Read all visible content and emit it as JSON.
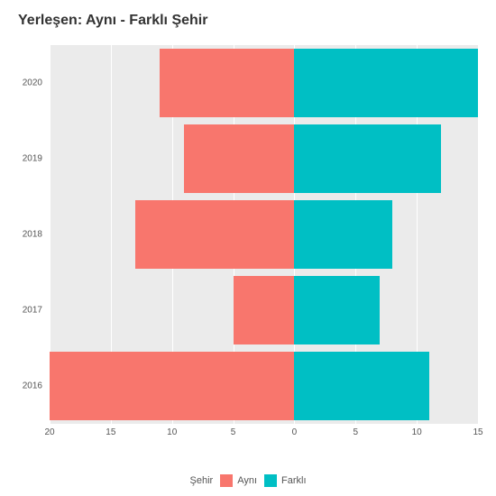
{
  "chart": {
    "type": "bar-diverging-horizontal",
    "title": "Yerleşen: Aynı - Farklı Şehir",
    "title_fontsize": 16,
    "title_color": "#333333",
    "background_color": "#ebebeb",
    "grid_color": "#ffffff",
    "axis_label_fontsize": 10,
    "x_domain_left": -20,
    "x_domain_right": 15,
    "x_ticks": [
      -20,
      -15,
      -10,
      -5,
      0,
      5,
      10,
      15
    ],
    "x_tick_labels": [
      "20",
      "15",
      "10",
      "5",
      "0",
      "5",
      "10",
      "15"
    ],
    "categories": [
      "2020",
      "2019",
      "2018",
      "2017",
      "2016"
    ],
    "series": {
      "ayni": {
        "label": "Aynı",
        "color": "#f8766d",
        "values": [
          -11,
          -9,
          -13,
          -5,
          -20
        ]
      },
      "farkli": {
        "label": "Farklı",
        "color": "#00bfc4",
        "values": [
          15,
          12,
          8,
          7,
          11
        ]
      }
    },
    "bar_width_ratio": 0.9,
    "legend": {
      "title": "Şehir",
      "position": "bottom"
    }
  }
}
